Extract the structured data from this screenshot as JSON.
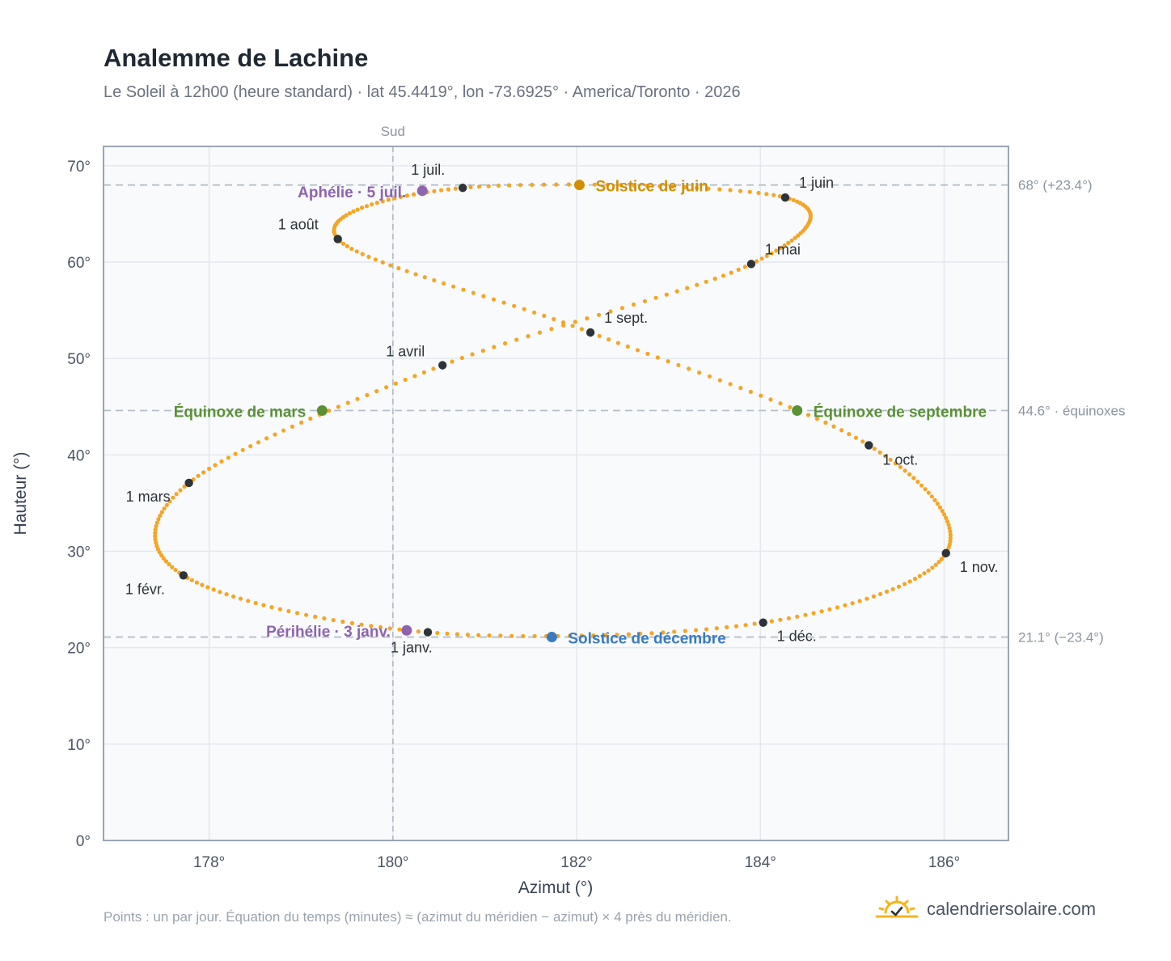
{
  "header": {
    "title": "Analemme de Lachine",
    "subtitle": "Le Soleil à 12h00 (heure standard) · lat 45.4419°, lon -73.6925° · America/Toronto · 2026"
  },
  "footer": {
    "note": "Points : un par jour. Équation du temps (minutes) ≈ (azimut du méridien − azimut) × 4 près du méridien.",
    "brand": "calendriersolaire.com",
    "brand_icon": "sun-check-icon"
  },
  "colors": {
    "curve": "#f5a524",
    "month_point": "#2d3338",
    "june_solstice": "#d18f00",
    "december_solstice": "#3a7bbf",
    "equinox": "#5a9134",
    "apsis": "#8e63b0",
    "reference_line": "#b6bfca",
    "plot_background": "#f8fafc",
    "frame": "#9aa5b4"
  },
  "chart_data": {
    "type": "scatter",
    "title": "Analemme de Lachine",
    "xlabel": "Azimut (°)",
    "ylabel": "Hauteur (°)",
    "xlim": [
      176.85,
      186.7
    ],
    "ylim": [
      0,
      72
    ],
    "x_ticks": [
      178,
      180,
      182,
      184,
      186
    ],
    "x_tick_labels": [
      "178°",
      "180°",
      "182°",
      "184°",
      "186°"
    ],
    "y_ticks": [
      0,
      10,
      20,
      30,
      40,
      50,
      60,
      70
    ],
    "y_tick_labels": [
      "0°",
      "10°",
      "20°",
      "30°",
      "40°",
      "50°",
      "60°",
      "70°"
    ],
    "grid": true,
    "points_per": "un par jour",
    "meridian": {
      "azimuth": 180,
      "label": "Sud"
    },
    "reference_lines": [
      {
        "altitude": 68.0,
        "label": "68° (+23.4°)"
      },
      {
        "altitude": 44.6,
        "label": "44.6° · équinoxes"
      },
      {
        "altitude": 21.1,
        "label": "21.1° (−23.4°)"
      }
    ],
    "month_points": [
      {
        "label": "1 janv.",
        "azimuth": 180.38,
        "altitude": 21.6
      },
      {
        "label": "1 févr.",
        "azimuth": 177.72,
        "altitude": 27.5
      },
      {
        "label": "1 mars",
        "azimuth": 177.78,
        "altitude": 37.1
      },
      {
        "label": "1 avril",
        "azimuth": 180.54,
        "altitude": 49.3
      },
      {
        "label": "1 mai",
        "azimuth": 183.9,
        "altitude": 59.8
      },
      {
        "label": "1 juin",
        "azimuth": 184.27,
        "altitude": 66.7
      },
      {
        "label": "1 juil.",
        "azimuth": 180.76,
        "altitude": 67.7
      },
      {
        "label": "1 août",
        "azimuth": 179.4,
        "altitude": 62.4
      },
      {
        "label": "1 sept.",
        "azimuth": 182.15,
        "altitude": 52.7
      },
      {
        "label": "1 oct.",
        "azimuth": 185.18,
        "altitude": 41.0
      },
      {
        "label": "1 nov.",
        "azimuth": 186.02,
        "altitude": 29.8
      },
      {
        "label": "1 déc.",
        "azimuth": 184.03,
        "altitude": 22.6
      }
    ],
    "events": [
      {
        "key": "june_solstice",
        "label": "Solstice de juin",
        "azimuth": 182.03,
        "altitude": 68.0
      },
      {
        "key": "december_solstice",
        "label": "Solstice de décembre",
        "azimuth": 181.73,
        "altitude": 21.1
      },
      {
        "key": "equinox",
        "label": "Équinoxe de mars",
        "azimuth": 179.23,
        "altitude": 44.6
      },
      {
        "key": "equinox",
        "label": "Équinoxe de septembre",
        "azimuth": 184.4,
        "altitude": 44.6
      },
      {
        "key": "apsis",
        "label": "Aphélie · 5 juil.",
        "azimuth": 180.32,
        "altitude": 67.4
      },
      {
        "key": "apsis",
        "label": "Périhélie · 3 janv.",
        "azimuth": 180.15,
        "altitude": 21.8
      }
    ]
  }
}
